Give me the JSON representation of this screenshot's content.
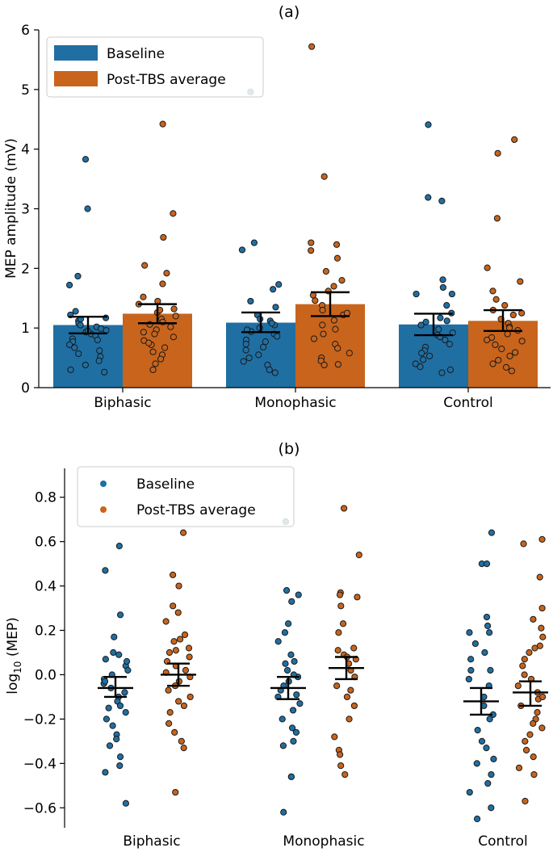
{
  "colors": {
    "baseline": "#1f6fa3",
    "post": "#c8641c"
  },
  "chart_data": [
    {
      "type": "bar",
      "title": "(a)",
      "ylabel": "MEP amplitude (mV)",
      "xlabel": "",
      "ylim": [
        0,
        6
      ],
      "yticks": [
        0,
        1,
        2,
        3,
        4,
        5,
        6
      ],
      "categories": [
        "Biphasic",
        "Monophasic",
        "Control"
      ],
      "legend": {
        "location": "top-left",
        "entries": [
          "Baseline",
          "Post-TBS average"
        ]
      },
      "series": [
        {
          "name": "Baseline",
          "color": "#1f6fa3",
          "values": [
            1.05,
            1.09,
            1.06
          ],
          "error_low": [
            0.91,
            0.93,
            0.88
          ],
          "error_high": [
            1.19,
            1.26,
            1.24
          ],
          "points": [
            [
              3.83,
              3.0,
              1.87,
              1.72,
              1.28,
              1.22,
              1.17,
              1.12,
              1.08,
              1.05,
              1.02,
              0.99,
              0.96,
              0.93,
              0.9,
              0.87,
              0.82,
              0.77,
              0.72,
              0.67,
              0.62,
              0.57,
              0.52,
              0.45,
              0.38,
              0.3,
              0.26,
              1.15,
              0.95,
              0.8
            ],
            [
              4.96,
              2.43,
              2.31,
              1.73,
              1.65,
              1.45,
              1.35,
              1.22,
              1.15,
              1.12,
              1.05,
              1.0,
              0.94,
              0.9,
              0.86,
              0.8,
              0.73,
              0.68,
              0.63,
              0.55,
              0.5,
              0.44,
              0.38,
              0.3,
              0.25,
              1.08,
              0.97,
              0.77
            ],
            [
              4.41,
              3.19,
              3.13,
              1.81,
              1.68,
              1.57,
              1.57,
              1.38,
              1.25,
              1.17,
              1.1,
              1.05,
              0.98,
              0.92,
              0.88,
              0.8,
              0.73,
              0.68,
              0.62,
              0.58,
              0.53,
              0.47,
              0.4,
              0.35,
              0.3,
              0.25,
              1.12,
              0.85
            ]
          ]
        },
        {
          "name": "Post-TBS average",
          "color": "#c8641c",
          "values": [
            1.24,
            1.4,
            1.12
          ],
          "error_low": [
            1.08,
            1.2,
            0.95
          ],
          "error_high": [
            1.4,
            1.6,
            1.3
          ],
          "points": [
            [
              4.42,
              2.92,
              2.52,
              2.05,
              1.92,
              1.74,
              1.52,
              1.45,
              1.4,
              1.32,
              1.26,
              1.2,
              1.15,
              1.1,
              1.06,
              1.02,
              0.97,
              0.9,
              0.85,
              0.79,
              0.72,
              0.67,
              0.6,
              0.55,
              0.48,
              0.4,
              0.3,
              1.3,
              0.93,
              0.75
            ],
            [
              5.72,
              3.54,
              2.43,
              2.4,
              2.3,
              2.17,
              1.95,
              1.8,
              1.7,
              1.62,
              1.55,
              1.46,
              1.38,
              1.3,
              1.22,
              1.13,
              1.05,
              0.98,
              0.9,
              0.82,
              0.73,
              0.66,
              0.58,
              0.5,
              0.45,
              0.39,
              0.38,
              1.25
            ],
            [
              4.16,
              3.93,
              2.84,
              2.01,
              1.78,
              1.62,
              1.48,
              1.38,
              1.3,
              1.22,
              1.15,
              1.08,
              1.02,
              0.96,
              0.9,
              0.84,
              0.78,
              0.72,
              0.65,
              0.59,
              0.53,
              0.46,
              0.4,
              0.34,
              0.28,
              1.25,
              1.0,
              0.8
            ]
          ]
        }
      ]
    },
    {
      "type": "scatter",
      "title": "(b)",
      "ylabel_main": "log",
      "ylabel_sub": "10",
      "ylabel_rest": " (MEP)",
      "xlabel": "",
      "ylim": [
        -0.69,
        0.93
      ],
      "yticks": [
        -0.6,
        -0.4,
        -0.2,
        0.0,
        0.2,
        0.4,
        0.6,
        0.8
      ],
      "ytick_labels": [
        "−0.6",
        "−0.4",
        "−0.2",
        "0.0",
        "0.2",
        "0.4",
        "0.6",
        "0.8"
      ],
      "categories": [
        "Biphasic",
        "Monophasic",
        "Control"
      ],
      "legend": {
        "location": "top-left",
        "entries": [
          "Baseline",
          "Post-TBS average"
        ]
      },
      "series": [
        {
          "name": "Baseline",
          "color": "#1f6fa3",
          "means": [
            -0.06,
            -0.06,
            -0.12
          ],
          "error_low": [
            -0.1,
            -0.11,
            -0.18
          ],
          "error_high": [
            -0.01,
            -0.01,
            -0.06
          ],
          "points": [
            [
              0.58,
              0.47,
              0.27,
              0.17,
              0.1,
              0.09,
              0.07,
              0.04,
              0.02,
              0.0,
              -0.02,
              -0.04,
              -0.06,
              -0.08,
              -0.1,
              -0.12,
              -0.14,
              -0.17,
              -0.2,
              -0.23,
              -0.27,
              -0.29,
              -0.32,
              -0.37,
              -0.41,
              -0.44,
              -0.58,
              0.06,
              -0.03,
              -0.15
            ],
            [
              0.69,
              0.38,
              0.36,
              0.33,
              0.23,
              0.19,
              0.15,
              0.09,
              0.06,
              0.05,
              0.02,
              -0.01,
              -0.03,
              -0.05,
              -0.07,
              -0.1,
              -0.13,
              -0.16,
              -0.2,
              -0.24,
              -0.26,
              -0.3,
              -0.32,
              -0.46,
              -0.46,
              -0.62,
              0.0,
              -0.09
            ],
            [
              0.64,
              0.5,
              0.5,
              0.26,
              0.22,
              0.19,
              0.19,
              0.14,
              0.1,
              0.07,
              0.02,
              0.02,
              -0.02,
              -0.05,
              -0.1,
              -0.14,
              -0.18,
              -0.2,
              -0.25,
              -0.33,
              -0.38,
              -0.4,
              -0.45,
              -0.49,
              -0.53,
              -0.6,
              -0.65,
              -0.3
            ]
          ]
        },
        {
          "name": "Post-TBS average",
          "color": "#c8641c",
          "means": [
            0.0,
            0.03,
            -0.08
          ],
          "error_low": [
            -0.05,
            -0.02,
            -0.14
          ],
          "error_high": [
            0.05,
            0.08,
            -0.03
          ],
          "points": [
            [
              0.64,
              0.45,
              0.4,
              0.31,
              0.28,
              0.24,
              0.18,
              0.16,
              0.15,
              0.12,
              0.1,
              0.08,
              0.06,
              0.04,
              0.02,
              0.01,
              -0.01,
              -0.05,
              -0.07,
              -0.1,
              -0.14,
              -0.17,
              -0.22,
              -0.26,
              -0.3,
              -0.33,
              -0.53,
              0.11,
              -0.03,
              -0.12
            ],
            [
              0.75,
              0.54,
              0.37,
              0.36,
              0.35,
              0.31,
              0.23,
              0.19,
              0.12,
              0.11,
              0.09,
              0.08,
              0.05,
              0.02,
              -0.01,
              -0.05,
              -0.07,
              -0.1,
              -0.14,
              -0.2,
              -0.28,
              -0.34,
              -0.36,
              -0.41,
              -0.45,
              0.07
            ],
            [
              0.61,
              0.59,
              0.44,
              0.3,
              0.25,
              0.21,
              0.17,
              0.13,
              0.12,
              0.1,
              0.07,
              0.04,
              0.0,
              -0.02,
              -0.05,
              -0.08,
              -0.11,
              -0.14,
              -0.17,
              -0.2,
              -0.24,
              -0.27,
              -0.3,
              -0.34,
              -0.37,
              -0.42,
              -0.45,
              -0.57,
              -0.1,
              -0.22
            ]
          ]
        }
      ]
    }
  ]
}
